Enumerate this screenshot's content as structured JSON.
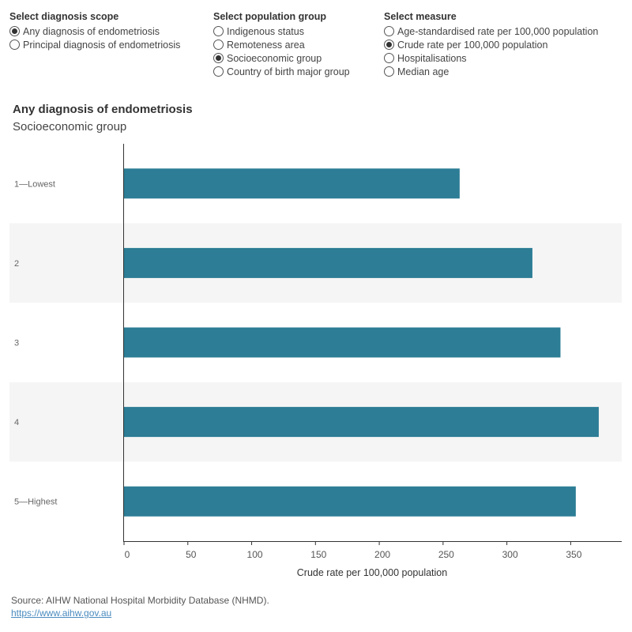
{
  "filters": {
    "scope": {
      "title": "Select diagnosis scope",
      "options": [
        {
          "label": "Any diagnosis of endometriosis",
          "selected": true
        },
        {
          "label": "Principal diagnosis of endometriosis",
          "selected": false
        }
      ]
    },
    "population": {
      "title": "Select population group",
      "options": [
        {
          "label": "Indigenous status",
          "selected": false
        },
        {
          "label": "Remoteness area",
          "selected": false
        },
        {
          "label": "Socioeconomic group",
          "selected": true
        },
        {
          "label": "Country of birth major group",
          "selected": false
        }
      ]
    },
    "measure": {
      "title": "Select measure",
      "options": [
        {
          "label": "Age-standardised rate per 100,000 population",
          "selected": false
        },
        {
          "label": "Crude rate per 100,000 population",
          "selected": true
        },
        {
          "label": "Hospitalisations",
          "selected": false
        },
        {
          "label": "Median age",
          "selected": false
        }
      ]
    }
  },
  "chart_data": {
    "type": "bar",
    "orientation": "horizontal",
    "title": "Any diagnosis of endometriosis",
    "subtitle": "Socioeconomic group",
    "categories": [
      "1—Lowest",
      "2",
      "3",
      "4",
      "5—Highest"
    ],
    "values": [
      263,
      320,
      342,
      372,
      354
    ],
    "xlabel": "Crude rate per 100,000 population",
    "xlim": [
      0,
      390
    ],
    "xticks": [
      0,
      50,
      100,
      150,
      200,
      250,
      300,
      350
    ],
    "bar_color": "#2c7d95",
    "band_color": "#f5f5f5",
    "grid": false
  },
  "footer": {
    "source": "Source: AIHW National Hospital Morbidity Database (NHMD).",
    "link": "https://www.aihw.gov.au"
  }
}
